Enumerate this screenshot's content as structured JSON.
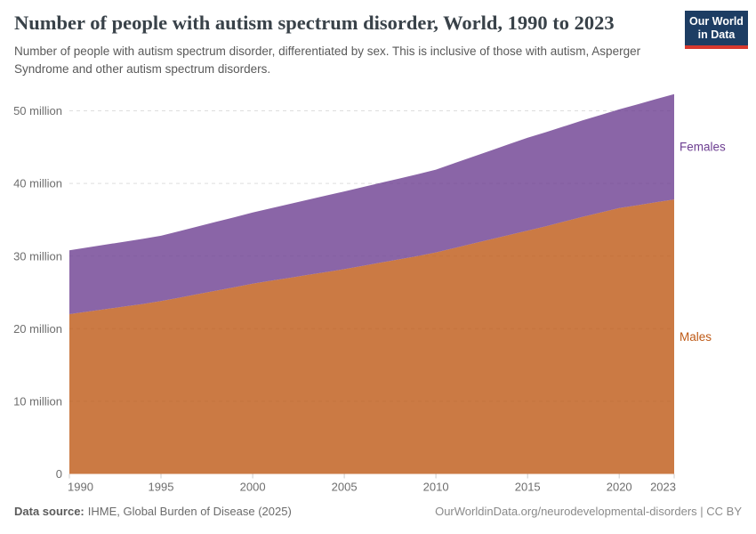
{
  "header": {
    "logo": {
      "line1": "Our World",
      "line2": "in Data",
      "bg_color": "#1d3d63",
      "accent_color": "#d7382e"
    }
  },
  "chart_data": {
    "type": "area",
    "stacked": true,
    "title": "Number of people with autism spectrum disorder, World, 1990 to 2023",
    "subtitle": "Number of people with autism spectrum disorder, differentiated by sex. This is inclusive of those with autism, Asperger Syndrome and other autism spectrum disorders.",
    "xlabel": "",
    "ylabel": "",
    "xlim": [
      1990,
      2023
    ],
    "ylim": [
      0,
      52.5
    ],
    "grid": "horizontal-dashed",
    "legend_position": "right-of-plot",
    "x": [
      1990,
      1991,
      1992,
      1993,
      1994,
      1995,
      1996,
      1997,
      1998,
      1999,
      2000,
      2001,
      2002,
      2003,
      2004,
      2005,
      2006,
      2007,
      2008,
      2009,
      2010,
      2011,
      2012,
      2013,
      2014,
      2015,
      2016,
      2017,
      2018,
      2019,
      2020,
      2021,
      2022,
      2023
    ],
    "series": [
      {
        "name": "Males",
        "unit": "million people",
        "color": "#BE5915",
        "fill_opacity": 0.8,
        "values": [
          22.0,
          22.35,
          22.7,
          23.05,
          23.4,
          23.8,
          24.27,
          24.75,
          25.23,
          25.7,
          26.2,
          26.6,
          27.0,
          27.4,
          27.8,
          28.2,
          28.65,
          29.1,
          29.55,
          30.0,
          30.5,
          31.1,
          31.7,
          32.3,
          32.9,
          33.5,
          34.1,
          34.75,
          35.4,
          36.0,
          36.6,
          37.0,
          37.4,
          37.8
        ]
      },
      {
        "name": "Females",
        "unit": "million people",
        "color": "#6D3E91",
        "fill_opacity": 0.8,
        "values": [
          8.8,
          8.84,
          8.88,
          8.92,
          8.96,
          9.0,
          9.16,
          9.32,
          9.48,
          9.64,
          9.8,
          9.98,
          10.16,
          10.34,
          10.52,
          10.7,
          10.84,
          10.98,
          11.12,
          11.26,
          11.4,
          11.68,
          11.96,
          12.24,
          12.52,
          12.8,
          12.96,
          13.12,
          13.28,
          13.44,
          13.6,
          13.9,
          14.2,
          14.5
        ]
      }
    ],
    "y_ticks": [
      {
        "value": 0,
        "label": "0"
      },
      {
        "value": 10,
        "label": "10 million"
      },
      {
        "value": 20,
        "label": "20 million"
      },
      {
        "value": 30,
        "label": "30 million"
      },
      {
        "value": 40,
        "label": "40 million"
      },
      {
        "value": 50,
        "label": "50 million"
      }
    ],
    "x_ticks": [
      {
        "value": 1990,
        "label": "1990"
      },
      {
        "value": 1995,
        "label": "1995"
      },
      {
        "value": 2000,
        "label": "2000"
      },
      {
        "value": 2005,
        "label": "2005"
      },
      {
        "value": 2010,
        "label": "2010"
      },
      {
        "value": 2015,
        "label": "2015"
      },
      {
        "value": 2020,
        "label": "2020"
      },
      {
        "value": 2023,
        "label": "2023"
      }
    ],
    "colors": {
      "gridline": "#dddddd",
      "tick_label": "#6e6e6e",
      "tick_mark": "#cccccc"
    }
  },
  "footer": {
    "datasource_label": "Data source:",
    "datasource_value": "IHME, Global Burden of Disease (2025)",
    "link": "OurWorldinData.org/neurodevelopmental-disorders | CC BY"
  }
}
